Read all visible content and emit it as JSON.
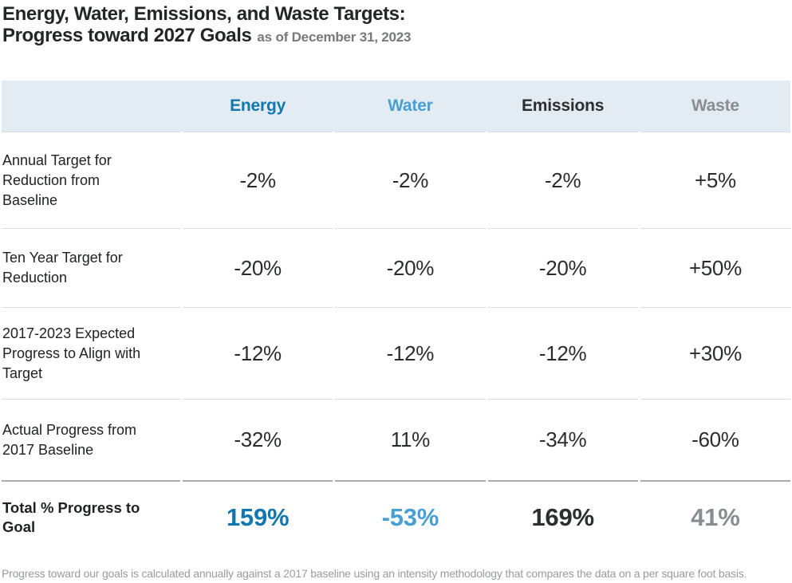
{
  "title": {
    "line1": "Energy, Water, Emissions, and Waste Targets:",
    "line2": "Progress toward 2027 Goals",
    "as_of": "as of December 31, 2023"
  },
  "table": {
    "columns": [
      "Energy",
      "Water",
      "Emissions",
      "Waste"
    ],
    "rows": [
      {
        "label": "Annual Target for Reduction from Baseline",
        "values": [
          "-2%",
          "-2%",
          "-2%",
          "+5%"
        ]
      },
      {
        "label": "Ten Year Target for Reduction",
        "values": [
          "-20%",
          "-20%",
          "-20%",
          "+50%"
        ]
      },
      {
        "label": "2017-2023 Expected Progress to Align with Target",
        "values": [
          "-12%",
          "-12%",
          "-12%",
          "+30%"
        ]
      },
      {
        "label": "Actual Progress from 2017 Baseline",
        "values": [
          "-32%",
          "11%",
          "-34%",
          "-60%"
        ]
      },
      {
        "label": "Total % Progress to Goal",
        "values": [
          "159%",
          "-53%",
          "169%",
          "41%"
        ]
      }
    ]
  },
  "footnote": "Progress toward our goals is calculated annually against a 2017 baseline using an intensity methodology that compares the data on a per square foot basis.",
  "colors": {
    "energy": "#1277af",
    "water": "#479fd3",
    "emissions": "#2c2e30",
    "waste": "#888d92",
    "header_bg": "#e3ecf3"
  },
  "chart_data": {
    "type": "table",
    "title": "Energy, Water, Emissions, and Waste Targets: Progress toward 2027 Goals",
    "as_of": "December 31, 2023",
    "columns": [
      "Energy",
      "Water",
      "Emissions",
      "Waste"
    ],
    "rows": [
      {
        "label": "Annual Target for Reduction from Baseline",
        "values_pct": [
          -2,
          -2,
          -2,
          5
        ]
      },
      {
        "label": "Ten Year Target for Reduction",
        "values_pct": [
          -20,
          -20,
          -20,
          50
        ]
      },
      {
        "label": "2017-2023 Expected Progress to Align with Target",
        "values_pct": [
          -12,
          -12,
          -12,
          30
        ]
      },
      {
        "label": "Actual Progress from 2017 Baseline",
        "values_pct": [
          -32,
          11,
          -34,
          -60
        ]
      },
      {
        "label": "Total % Progress to Goal",
        "values_pct": [
          159,
          -53,
          169,
          41
        ]
      }
    ]
  }
}
